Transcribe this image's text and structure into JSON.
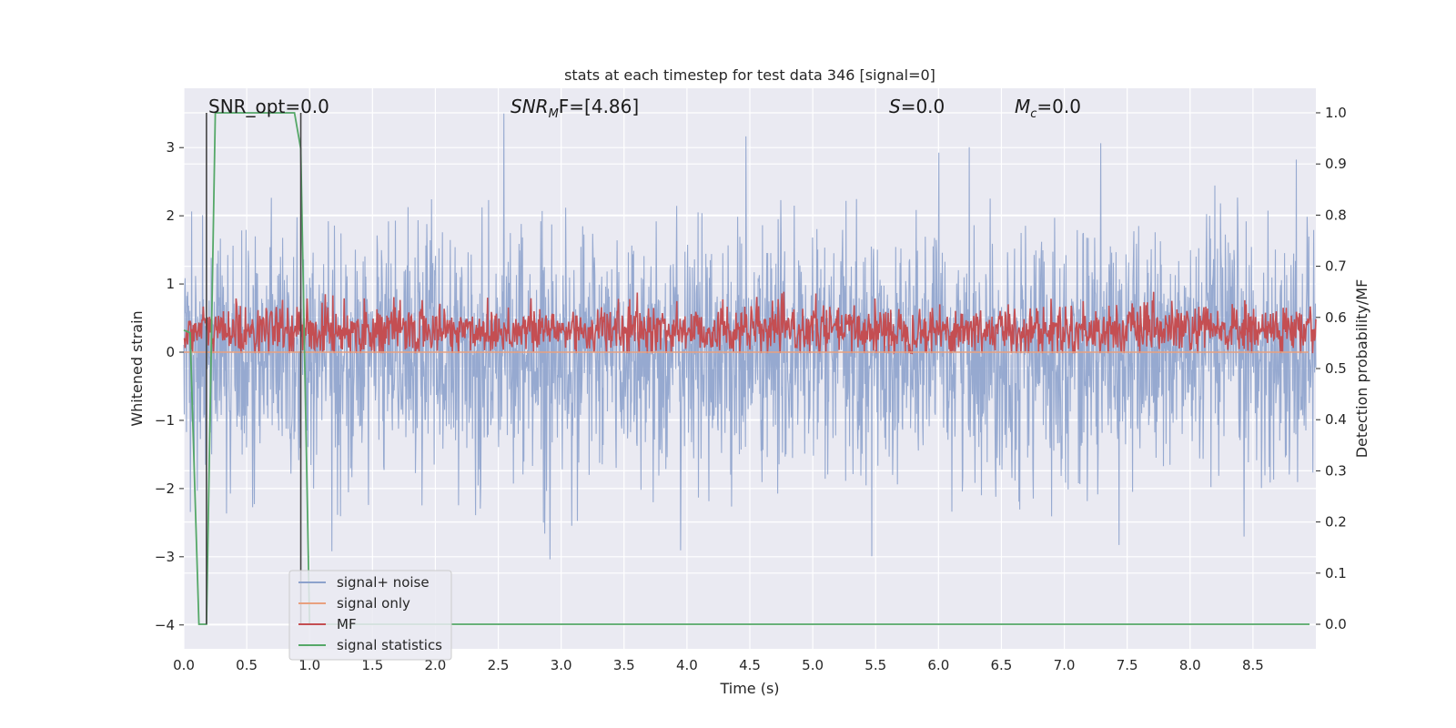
{
  "chart_data": {
    "type": "line",
    "title": "stats at each timestep for test data 346 [signal=0]",
    "xlabel": "Time (s)",
    "ylabel_left": "Whitened strain",
    "ylabel_right": "Detection probability/MF",
    "xlim": [
      0.0,
      9.0
    ],
    "ylim_left": [
      -4.35,
      3.87
    ],
    "ylim_right": [
      -0.048,
      1.048
    ],
    "x_ticks": [
      "0.0",
      "0.5",
      "1.0",
      "1.5",
      "2.0",
      "2.5",
      "3.0",
      "3.5",
      "4.0",
      "4.5",
      "5.0",
      "5.5",
      "6.0",
      "6.5",
      "7.0",
      "7.5",
      "8.0",
      "8.5"
    ],
    "y_ticks_left": [
      "3",
      "2",
      "1",
      "0",
      "−1",
      "−2",
      "−3",
      "−4"
    ],
    "y_ticks_right": [
      "1.0",
      "0.9",
      "0.8",
      "0.7",
      "0.6",
      "0.5",
      "0.4",
      "0.3",
      "0.2",
      "0.1",
      "0.0"
    ],
    "annotations": {
      "snr_opt": "SNR_opt=0.0",
      "snr_mf_main": "SNR",
      "snr_mf_sub": "M",
      "snr_mf_rest": "F=[4.86]",
      "s_main": "S",
      "s_rest": "=0.0",
      "mc_main": "M",
      "mc_sub": "c",
      "mc_rest": "=0.0"
    },
    "grid": true,
    "legend_position": "lower-left",
    "series": [
      {
        "name": "signal+ noise",
        "color": "#8da2cc",
        "axis": "left",
        "kind": "noise",
        "approx_std": 0.9,
        "approx_range": [
          -3.6,
          3.5
        ]
      },
      {
        "name": "signal only",
        "color": "#e8a07f",
        "axis": "left",
        "kind": "flat",
        "value": 0.0
      },
      {
        "name": "MF",
        "color": "#c44e52",
        "axis": "right",
        "kind": "band",
        "approx_range": [
          0.53,
          0.62
        ]
      },
      {
        "name": "signal statistics",
        "color": "#55a868",
        "axis": "right",
        "kind": "step",
        "points": [
          [
            0.0,
            0.575
          ],
          [
            0.05,
            0.57
          ],
          [
            0.12,
            0.0
          ],
          [
            0.18,
            0.0
          ],
          [
            0.25,
            1.0
          ],
          [
            0.88,
            1.0
          ],
          [
            0.93,
            0.93
          ],
          [
            1.0,
            0.0
          ],
          [
            9.0,
            0.0
          ]
        ]
      }
    ],
    "vlines": [
      0.18,
      0.93
    ],
    "vline_color": "#444444",
    "grid_color": "#ffffff",
    "background": "#eaeaf2"
  }
}
